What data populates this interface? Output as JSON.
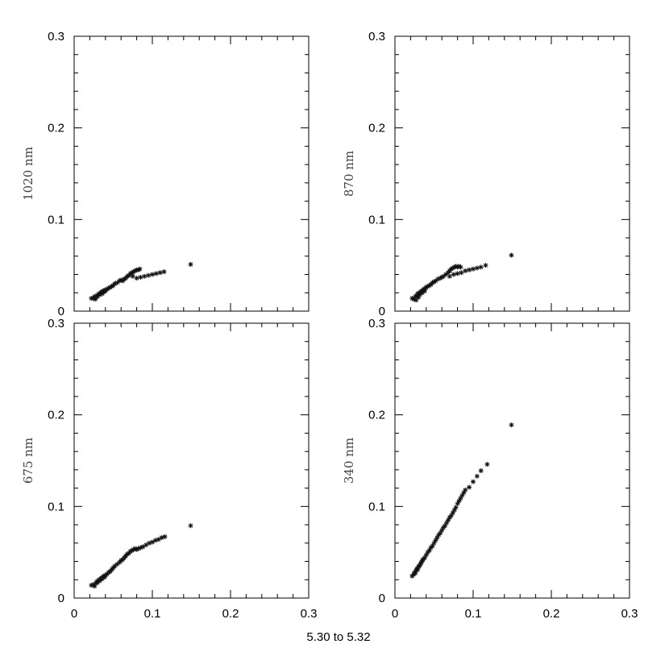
{
  "figure": {
    "xlabel": "5.30 to 5.32"
  },
  "chart_data": [
    {
      "type": "scatter",
      "ylabel": "1020 nm",
      "xlim": [
        0,
        0.3
      ],
      "ylim": [
        0,
        0.3
      ],
      "xticks": [
        "0",
        "0.1",
        "0.2",
        "0.3"
      ],
      "yticks": [
        "0",
        "0.1",
        "0.2",
        "0.3"
      ],
      "show_xticklabels": false,
      "points": [
        [
          0.022,
          0.014
        ],
        [
          0.025,
          0.014
        ],
        [
          0.026,
          0.016
        ],
        [
          0.027,
          0.013
        ],
        [
          0.028,
          0.015
        ],
        [
          0.029,
          0.017
        ],
        [
          0.03,
          0.016
        ],
        [
          0.031,
          0.018
        ],
        [
          0.032,
          0.019
        ],
        [
          0.033,
          0.018
        ],
        [
          0.034,
          0.02
        ],
        [
          0.035,
          0.021
        ],
        [
          0.036,
          0.019
        ],
        [
          0.037,
          0.022
        ],
        [
          0.038,
          0.021
        ],
        [
          0.039,
          0.023
        ],
        [
          0.04,
          0.022
        ],
        [
          0.042,
          0.024
        ],
        [
          0.044,
          0.025
        ],
        [
          0.046,
          0.026
        ],
        [
          0.048,
          0.027
        ],
        [
          0.05,
          0.028
        ],
        [
          0.052,
          0.03
        ],
        [
          0.055,
          0.031
        ],
        [
          0.058,
          0.033
        ],
        [
          0.06,
          0.034
        ],
        [
          0.062,
          0.033
        ],
        [
          0.064,
          0.035
        ],
        [
          0.066,
          0.036
        ],
        [
          0.068,
          0.038
        ],
        [
          0.07,
          0.039
        ],
        [
          0.072,
          0.041
        ],
        [
          0.074,
          0.042
        ],
        [
          0.076,
          0.043
        ],
        [
          0.078,
          0.044
        ],
        [
          0.08,
          0.045
        ],
        [
          0.082,
          0.045
        ],
        [
          0.084,
          0.046
        ],
        [
          0.075,
          0.038
        ],
        [
          0.08,
          0.036
        ],
        [
          0.085,
          0.037
        ],
        [
          0.09,
          0.038
        ],
        [
          0.095,
          0.039
        ],
        [
          0.1,
          0.04
        ],
        [
          0.105,
          0.041
        ],
        [
          0.11,
          0.042
        ],
        [
          0.115,
          0.043
        ],
        [
          0.149,
          0.051
        ]
      ]
    },
    {
      "type": "scatter",
      "ylabel": "870 nm",
      "xlim": [
        0,
        0.3
      ],
      "ylim": [
        0,
        0.3
      ],
      "xticks": [
        "0",
        "0.1",
        "0.2",
        "0.3"
      ],
      "yticks": [
        "0",
        "0.1",
        "0.2",
        "0.3"
      ],
      "show_xticklabels": false,
      "points": [
        [
          0.022,
          0.014
        ],
        [
          0.024,
          0.013
        ],
        [
          0.026,
          0.016
        ],
        [
          0.027,
          0.012
        ],
        [
          0.028,
          0.017
        ],
        [
          0.029,
          0.019
        ],
        [
          0.03,
          0.015
        ],
        [
          0.031,
          0.02
        ],
        [
          0.032,
          0.018
        ],
        [
          0.033,
          0.021
        ],
        [
          0.034,
          0.022
        ],
        [
          0.035,
          0.02
        ],
        [
          0.036,
          0.023
        ],
        [
          0.037,
          0.024
        ],
        [
          0.038,
          0.022
        ],
        [
          0.039,
          0.025
        ],
        [
          0.04,
          0.026
        ],
        [
          0.042,
          0.027
        ],
        [
          0.044,
          0.028
        ],
        [
          0.046,
          0.029
        ],
        [
          0.048,
          0.031
        ],
        [
          0.05,
          0.032
        ],
        [
          0.052,
          0.033
        ],
        [
          0.055,
          0.035
        ],
        [
          0.058,
          0.036
        ],
        [
          0.06,
          0.037
        ],
        [
          0.062,
          0.038
        ],
        [
          0.065,
          0.04
        ],
        [
          0.068,
          0.042
        ],
        [
          0.07,
          0.044
        ],
        [
          0.072,
          0.046
        ],
        [
          0.074,
          0.047
        ],
        [
          0.076,
          0.048
        ],
        [
          0.078,
          0.049
        ],
        [
          0.08,
          0.048
        ],
        [
          0.082,
          0.049
        ],
        [
          0.084,
          0.048
        ],
        [
          0.07,
          0.038
        ],
        [
          0.075,
          0.04
        ],
        [
          0.08,
          0.041
        ],
        [
          0.085,
          0.042
        ],
        [
          0.09,
          0.044
        ],
        [
          0.095,
          0.045
        ],
        [
          0.1,
          0.046
        ],
        [
          0.105,
          0.047
        ],
        [
          0.11,
          0.048
        ],
        [
          0.116,
          0.05
        ],
        [
          0.149,
          0.061
        ]
      ]
    },
    {
      "type": "scatter",
      "ylabel": "675 nm",
      "xlim": [
        0,
        0.3
      ],
      "ylim": [
        0,
        0.3
      ],
      "xticks": [
        "0",
        "0.1",
        "0.2",
        "0.3"
      ],
      "yticks": [
        "0",
        "0.1",
        "0.2",
        "0.3"
      ],
      "show_xticklabels": true,
      "points": [
        [
          0.022,
          0.014
        ],
        [
          0.025,
          0.015
        ],
        [
          0.026,
          0.013
        ],
        [
          0.028,
          0.016
        ],
        [
          0.029,
          0.018
        ],
        [
          0.03,
          0.017
        ],
        [
          0.031,
          0.019
        ],
        [
          0.032,
          0.02
        ],
        [
          0.033,
          0.019
        ],
        [
          0.034,
          0.021
        ],
        [
          0.035,
          0.022
        ],
        [
          0.036,
          0.021
        ],
        [
          0.037,
          0.023
        ],
        [
          0.038,
          0.024
        ],
        [
          0.039,
          0.023
        ],
        [
          0.04,
          0.025
        ],
        [
          0.042,
          0.026
        ],
        [
          0.044,
          0.028
        ],
        [
          0.046,
          0.029
        ],
        [
          0.048,
          0.031
        ],
        [
          0.05,
          0.033
        ],
        [
          0.052,
          0.035
        ],
        [
          0.055,
          0.037
        ],
        [
          0.058,
          0.039
        ],
        [
          0.06,
          0.041
        ],
        [
          0.062,
          0.042
        ],
        [
          0.064,
          0.044
        ],
        [
          0.066,
          0.046
        ],
        [
          0.068,
          0.048
        ],
        [
          0.07,
          0.049
        ],
        [
          0.072,
          0.051
        ],
        [
          0.074,
          0.052
        ],
        [
          0.076,
          0.053
        ],
        [
          0.078,
          0.054
        ],
        [
          0.08,
          0.053
        ],
        [
          0.082,
          0.054
        ],
        [
          0.085,
          0.055
        ],
        [
          0.088,
          0.056
        ],
        [
          0.092,
          0.058
        ],
        [
          0.096,
          0.06
        ],
        [
          0.1,
          0.061
        ],
        [
          0.104,
          0.063
        ],
        [
          0.108,
          0.064
        ],
        [
          0.112,
          0.066
        ],
        [
          0.116,
          0.067
        ],
        [
          0.149,
          0.079
        ]
      ]
    },
    {
      "type": "scatter",
      "ylabel": "340 nm",
      "xlim": [
        0,
        0.3
      ],
      "ylim": [
        0,
        0.3
      ],
      "xticks": [
        "0",
        "0.1",
        "0.2",
        "0.3"
      ],
      "yticks": [
        "0",
        "0.1",
        "0.2",
        "0.3"
      ],
      "show_xticklabels": true,
      "points": [
        [
          0.022,
          0.024
        ],
        [
          0.024,
          0.026
        ],
        [
          0.025,
          0.028
        ],
        [
          0.026,
          0.027
        ],
        [
          0.027,
          0.03
        ],
        [
          0.028,
          0.032
        ],
        [
          0.029,
          0.031
        ],
        [
          0.03,
          0.034
        ],
        [
          0.031,
          0.035
        ],
        [
          0.032,
          0.036
        ],
        [
          0.033,
          0.038
        ],
        [
          0.034,
          0.039
        ],
        [
          0.035,
          0.041
        ],
        [
          0.036,
          0.042
        ],
        [
          0.038,
          0.044
        ],
        [
          0.04,
          0.047
        ],
        [
          0.042,
          0.05
        ],
        [
          0.044,
          0.052
        ],
        [
          0.046,
          0.055
        ],
        [
          0.048,
          0.057
        ],
        [
          0.05,
          0.06
        ],
        [
          0.052,
          0.063
        ],
        [
          0.054,
          0.066
        ],
        [
          0.056,
          0.069
        ],
        [
          0.058,
          0.071
        ],
        [
          0.06,
          0.074
        ],
        [
          0.062,
          0.077
        ],
        [
          0.064,
          0.079
        ],
        [
          0.066,
          0.082
        ],
        [
          0.068,
          0.085
        ],
        [
          0.07,
          0.088
        ],
        [
          0.072,
          0.09
        ],
        [
          0.074,
          0.093
        ],
        [
          0.076,
          0.096
        ],
        [
          0.078,
          0.099
        ],
        [
          0.08,
          0.103
        ],
        [
          0.082,
          0.106
        ],
        [
          0.084,
          0.109
        ],
        [
          0.086,
          0.112
        ],
        [
          0.088,
          0.115
        ],
        [
          0.09,
          0.118
        ],
        [
          0.095,
          0.121
        ],
        [
          0.1,
          0.127
        ],
        [
          0.105,
          0.133
        ],
        [
          0.11,
          0.139
        ],
        [
          0.118,
          0.146
        ],
        [
          0.149,
          0.189
        ]
      ]
    }
  ]
}
